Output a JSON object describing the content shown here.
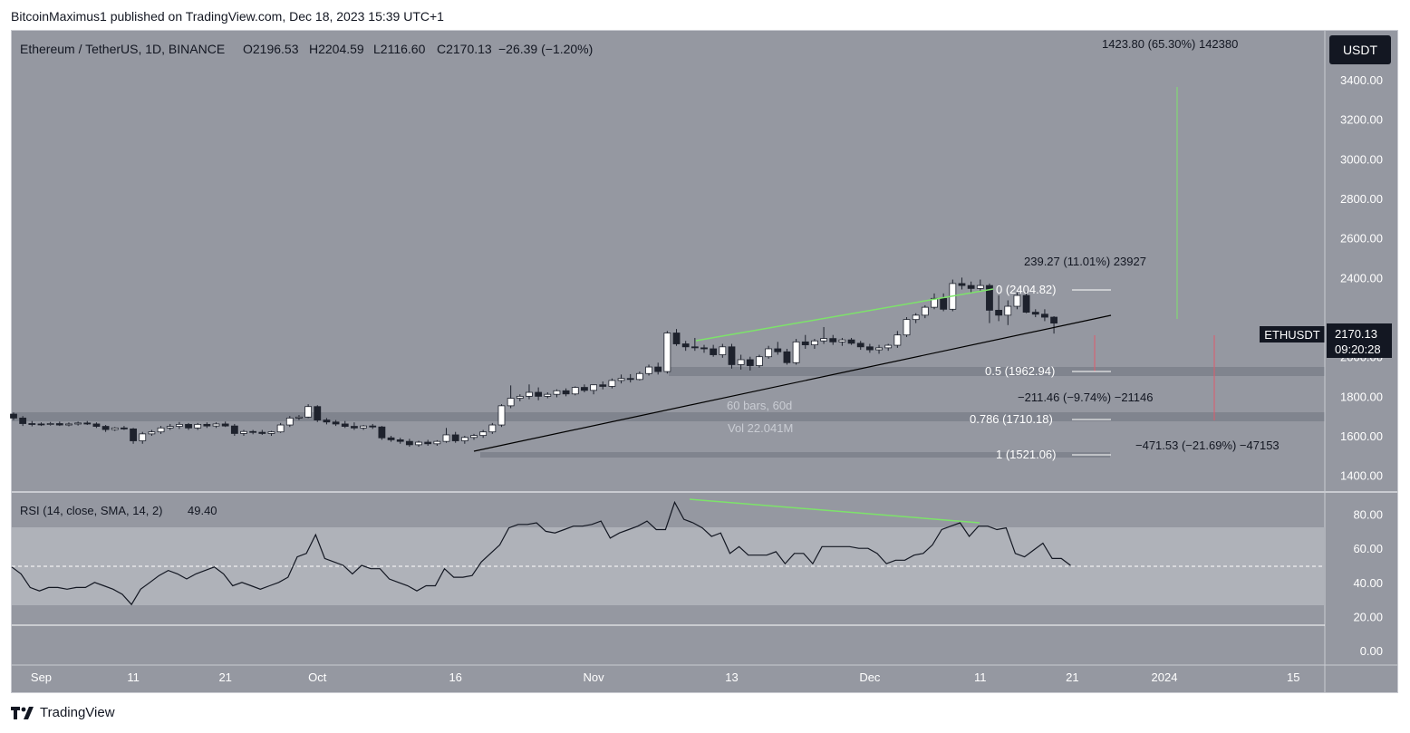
{
  "publisher_line": "BitcoinMaximus1 published on TradingView.com, Dec 18, 2023 15:39 UTC+1",
  "footer_brand": "TradingView",
  "colors": {
    "background": "#9598a1",
    "bull": "#ffffff",
    "bear": "#1e222d",
    "accent_green": "#7de36a",
    "fib_band": "#80848e",
    "rsi_band": "#afb2b9",
    "tag_bg": "#131722"
  },
  "header": {
    "symbol": "Ethereum / TetherUS, 1D, BINANCE",
    "open": "O2196.53",
    "high": "H2204.59",
    "low": "L2116.60",
    "close": "C2170.13",
    "change": "−26.39 (−1.20%)"
  },
  "currency_button": "USDT",
  "price_tag": {
    "symbol": "ETHUSDT",
    "price": "2170.13",
    "countdown": "09:20:28"
  },
  "rsi_header": {
    "label": "RSI (14, close, SMA, 14, 2)",
    "value": "49.40"
  },
  "fib_labels": [
    "0 (2404.82)",
    "0.5 (1962.94)",
    "0.786 (1710.18)",
    "1 (1521.06)"
  ],
  "measure_labels": [
    "1423.80 (65.30%) 142380",
    "239.27 (11.01%) 23927",
    "−211.46 (−9.74%) −21146",
    "−471.53 (−21.69%) −47153"
  ],
  "range_info": [
    "60 bars, 60d",
    "Vol 22.041M"
  ],
  "chart_data": [
    {
      "type": "candlestick",
      "title": "Ethereum / TetherUS, 1D, BINANCE",
      "ylim": [
        1330,
        3620
      ],
      "y_ticks": [
        "3400.00",
        "3200.00",
        "3000.00",
        "2800.00",
        "2600.00",
        "2400.00",
        "2000.00",
        "1800.00",
        "1600.00",
        "1400.00"
      ],
      "x_tick_labels": [
        "Sep",
        "11",
        "21",
        "Oct",
        "16",
        "Nov",
        "13",
        "Dec",
        "11",
        "21",
        "2024",
        "15"
      ],
      "candles": [
        [
          1710,
          1718,
          1680,
          1690
        ],
        [
          1690,
          1700,
          1650,
          1662
        ],
        [
          1662,
          1675,
          1648,
          1660
        ],
        [
          1660,
          1668,
          1650,
          1658
        ],
        [
          1658,
          1670,
          1652,
          1662
        ],
        [
          1662,
          1672,
          1650,
          1655
        ],
        [
          1655,
          1668,
          1648,
          1660
        ],
        [
          1660,
          1672,
          1652,
          1665
        ],
        [
          1665,
          1675,
          1655,
          1660
        ],
        [
          1660,
          1668,
          1640,
          1648
        ],
        [
          1648,
          1655,
          1620,
          1632
        ],
        [
          1632,
          1645,
          1625,
          1640
        ],
        [
          1640,
          1650,
          1630,
          1635
        ],
        [
          1635,
          1640,
          1560,
          1575
        ],
        [
          1575,
          1620,
          1560,
          1610
        ],
        [
          1610,
          1630,
          1600,
          1620
        ],
        [
          1620,
          1650,
          1610,
          1640
        ],
        [
          1640,
          1660,
          1630,
          1648
        ],
        [
          1648,
          1670,
          1635,
          1658
        ],
        [
          1658,
          1665,
          1630,
          1640
        ],
        [
          1640,
          1665,
          1630,
          1658
        ],
        [
          1658,
          1668,
          1640,
          1650
        ],
        [
          1650,
          1668,
          1640,
          1660
        ],
        [
          1660,
          1672,
          1645,
          1650
        ],
        [
          1650,
          1660,
          1600,
          1612
        ],
        [
          1612,
          1630,
          1600,
          1622
        ],
        [
          1622,
          1630,
          1608,
          1618
        ],
        [
          1618,
          1630,
          1605,
          1612
        ],
        [
          1612,
          1625,
          1600,
          1620
        ],
        [
          1620,
          1665,
          1615,
          1655
        ],
        [
          1655,
          1700,
          1645,
          1690
        ],
        [
          1690,
          1705,
          1680,
          1695
        ],
        [
          1695,
          1760,
          1690,
          1748
        ],
        [
          1748,
          1755,
          1670,
          1680
        ],
        [
          1680,
          1690,
          1658,
          1670
        ],
        [
          1670,
          1680,
          1650,
          1660
        ],
        [
          1660,
          1675,
          1640,
          1648
        ],
        [
          1648,
          1668,
          1630,
          1640
        ],
        [
          1640,
          1655,
          1630,
          1650
        ],
        [
          1650,
          1660,
          1635,
          1645
        ],
        [
          1645,
          1650,
          1580,
          1590
        ],
        [
          1590,
          1600,
          1570,
          1580
        ],
        [
          1580,
          1590,
          1560,
          1572
        ],
        [
          1572,
          1585,
          1545,
          1555
        ],
        [
          1555,
          1575,
          1545,
          1568
        ],
        [
          1568,
          1580,
          1550,
          1560
        ],
        [
          1560,
          1578,
          1550,
          1572
        ],
        [
          1572,
          1640,
          1565,
          1605
        ],
        [
          1605,
          1620,
          1565,
          1575
        ],
        [
          1575,
          1600,
          1560,
          1592
        ],
        [
          1592,
          1610,
          1580,
          1602
        ],
        [
          1602,
          1630,
          1590,
          1620
        ],
        [
          1620,
          1665,
          1610,
          1655
        ],
        [
          1655,
          1760,
          1645,
          1752
        ],
        [
          1752,
          1855,
          1740,
          1790
        ],
        [
          1790,
          1810,
          1775,
          1800
        ],
        [
          1800,
          1860,
          1785,
          1820
        ],
        [
          1820,
          1845,
          1780,
          1800
        ],
        [
          1800,
          1820,
          1790,
          1810
        ],
        [
          1810,
          1835,
          1795,
          1828
        ],
        [
          1828,
          1840,
          1800,
          1812
        ],
        [
          1812,
          1850,
          1805,
          1845
        ],
        [
          1845,
          1860,
          1820,
          1830
        ],
        [
          1830,
          1860,
          1810,
          1858
        ],
        [
          1858,
          1875,
          1835,
          1850
        ],
        [
          1850,
          1890,
          1840,
          1880
        ],
        [
          1880,
          1910,
          1865,
          1890
        ],
        [
          1890,
          1912,
          1870,
          1885
        ],
        [
          1885,
          1925,
          1880,
          1915
        ],
        [
          1915,
          1960,
          1905,
          1948
        ],
        [
          1948,
          1970,
          1910,
          1925
        ],
        [
          1925,
          2130,
          1915,
          2120
        ],
        [
          2120,
          2140,
          2055,
          2065
        ],
        [
          2065,
          2080,
          2030,
          2050
        ],
        [
          2050,
          2095,
          2030,
          2045
        ],
        [
          2045,
          2060,
          2020,
          2040
        ],
        [
          2040,
          2060,
          2000,
          2010
        ],
        [
          2010,
          2065,
          1995,
          2050
        ],
        [
          2050,
          2065,
          1940,
          1960
        ],
        [
          1960,
          2010,
          1935,
          1985
        ],
        [
          1985,
          2000,
          1930,
          1955
        ],
        [
          1955,
          2010,
          1945,
          2000
        ],
        [
          2000,
          2055,
          1990,
          2040
        ],
        [
          2040,
          2075,
          2010,
          2025
        ],
        [
          2025,
          2040,
          1960,
          1970
        ],
        [
          1970,
          2090,
          1960,
          2075
        ],
        [
          2075,
          2110,
          2040,
          2060
        ],
        [
          2060,
          2090,
          2040,
          2080
        ],
        [
          2080,
          2150,
          2065,
          2092
        ],
        [
          2092,
          2110,
          2060,
          2075
        ],
        [
          2075,
          2095,
          2055,
          2085
        ],
        [
          2085,
          2095,
          2060,
          2068
        ],
        [
          2068,
          2080,
          2035,
          2050
        ],
        [
          2050,
          2065,
          2020,
          2035
        ],
        [
          2035,
          2060,
          2015,
          2045
        ],
        [
          2045,
          2065,
          2030,
          2058
        ],
        [
          2058,
          2130,
          2045,
          2110
        ],
        [
          2110,
          2200,
          2100,
          2188
        ],
        [
          2188,
          2220,
          2170,
          2210
        ],
        [
          2210,
          2260,
          2195,
          2250
        ],
        [
          2250,
          2320,
          2240,
          2295
        ],
        [
          2295,
          2320,
          2230,
          2240
        ],
        [
          2240,
          2390,
          2230,
          2370
        ],
        [
          2370,
          2400,
          2340,
          2360
        ],
        [
          2360,
          2380,
          2320,
          2345
        ],
        [
          2345,
          2390,
          2330,
          2360
        ],
        [
          2360,
          2370,
          2170,
          2235
        ],
        [
          2235,
          2310,
          2180,
          2210
        ],
        [
          2210,
          2285,
          2160,
          2255
        ],
        [
          2255,
          2325,
          2240,
          2310
        ],
        [
          2310,
          2330,
          2220,
          2225
        ],
        [
          2225,
          2240,
          2200,
          2215
        ],
        [
          2215,
          2240,
          2180,
          2200
        ],
        [
          2200,
          2205,
          2117,
          2170
        ]
      ]
    },
    {
      "type": "line",
      "title": "RSI (14, close, SMA, 14, 2)",
      "ylim": [
        -8,
        92
      ],
      "y_ticks": [
        "80.00",
        "60.00",
        "40.00",
        "20.00",
        "0.00"
      ],
      "bands": [
        30,
        70
      ],
      "midline": 50,
      "values": [
        49,
        45,
        37,
        35,
        37,
        37,
        36,
        37,
        37,
        40,
        38,
        36,
        33,
        27,
        36,
        40,
        44,
        47,
        45,
        42,
        45,
        47,
        49,
        45,
        38,
        40,
        38,
        36,
        38,
        40,
        43,
        55,
        57,
        68,
        54,
        52,
        50,
        45,
        50,
        48,
        48,
        42,
        40,
        38,
        35,
        38,
        38,
        48,
        43,
        43,
        44,
        52,
        57,
        62,
        72,
        74,
        74,
        75,
        70,
        69,
        71,
        73,
        73,
        74,
        76,
        66,
        69,
        71,
        73,
        76,
        71,
        71,
        87,
        77,
        75,
        72,
        67,
        69,
        57,
        61,
        56,
        56,
        56,
        58,
        51,
        57,
        57,
        51,
        61,
        61,
        61,
        61,
        60,
        60,
        57,
        51,
        53,
        53,
        56,
        57,
        62,
        71,
        73,
        75,
        67,
        73,
        73,
        71,
        72,
        57,
        55,
        59,
        63,
        54,
        54,
        50
      ]
    }
  ]
}
